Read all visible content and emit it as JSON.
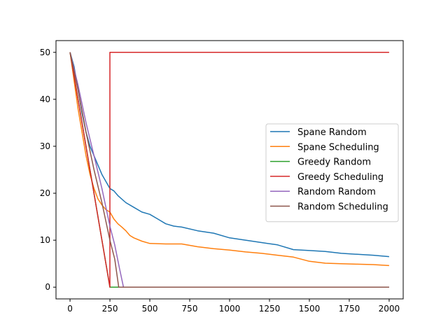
{
  "chart_data": {
    "type": "line",
    "title": "",
    "xlabel": "",
    "ylabel": "",
    "xlim": [
      -88,
      2088
    ],
    "ylim": [
      -2.5,
      52.5
    ],
    "xticks": [
      0,
      250,
      500,
      750,
      1000,
      1250,
      1500,
      1750,
      2000
    ],
    "yticks": [
      0,
      10,
      20,
      30,
      40,
      50
    ],
    "grid": false,
    "legend_position": "center-right",
    "series": [
      {
        "name": "Spane Random",
        "color": "#1f77b4",
        "x": [
          0,
          25,
          50,
          75,
          100,
          125,
          150,
          175,
          200,
          225,
          250,
          275,
          300,
          350,
          400,
          450,
          500,
          550,
          600,
          650,
          700,
          800,
          900,
          1000,
          1100,
          1200,
          1300,
          1400,
          1500,
          1600,
          1700,
          1800,
          1900,
          2000
        ],
        "y": [
          50,
          47,
          42,
          37,
          33,
          30,
          28,
          26,
          24,
          22.5,
          21,
          20.5,
          19.5,
          18,
          17,
          16,
          15.5,
          14.5,
          13.5,
          13,
          12.8,
          12,
          11.5,
          10.5,
          10,
          9.5,
          9,
          8,
          7.8,
          7.6,
          7.2,
          7,
          6.8,
          6.5
        ]
      },
      {
        "name": "Spane Scheduling",
        "color": "#ff7f0e",
        "x": [
          0,
          25,
          50,
          75,
          100,
          125,
          150,
          175,
          200,
          225,
          250,
          275,
          300,
          325,
          350,
          375,
          400,
          450,
          500,
          600,
          700,
          800,
          900,
          1000,
          1100,
          1200,
          1300,
          1400,
          1500,
          1600,
          1700,
          1800,
          1900,
          2000
        ],
        "y": [
          50,
          44,
          38,
          33,
          28,
          24,
          21,
          18.8,
          17.5,
          16.5,
          16,
          14.5,
          13.5,
          12.8,
          12,
          11,
          10.5,
          9.8,
          9.3,
          9.2,
          9.2,
          8.6,
          8.2,
          7.9,
          7.5,
          7.2,
          6.8,
          6.4,
          5.5,
          5.1,
          5,
          4.9,
          4.8,
          4.6
        ]
      },
      {
        "name": "Greedy Random",
        "color": "#2ca02c",
        "x": [
          0,
          250,
          2000
        ],
        "y": [
          50,
          0,
          0
        ]
      },
      {
        "name": "Greedy Scheduling",
        "color": "#d62728",
        "x": [
          0,
          250,
          250,
          2000
        ],
        "y": [
          50,
          0,
          50,
          50
        ]
      },
      {
        "name": "Random Random",
        "color": "#9467bd",
        "x": [
          0,
          50,
          100,
          150,
          200,
          250,
          280,
          310,
          335,
          2000
        ],
        "y": [
          50,
          43,
          35,
          28,
          21,
          13,
          9,
          4,
          0,
          0
        ]
      },
      {
        "name": "Random Scheduling",
        "color": "#8c564b",
        "x": [
          0,
          50,
          100,
          150,
          200,
          250,
          280,
          305,
          2000
        ],
        "y": [
          50,
          42,
          33,
          25,
          18,
          10,
          6,
          0,
          0
        ]
      }
    ]
  }
}
